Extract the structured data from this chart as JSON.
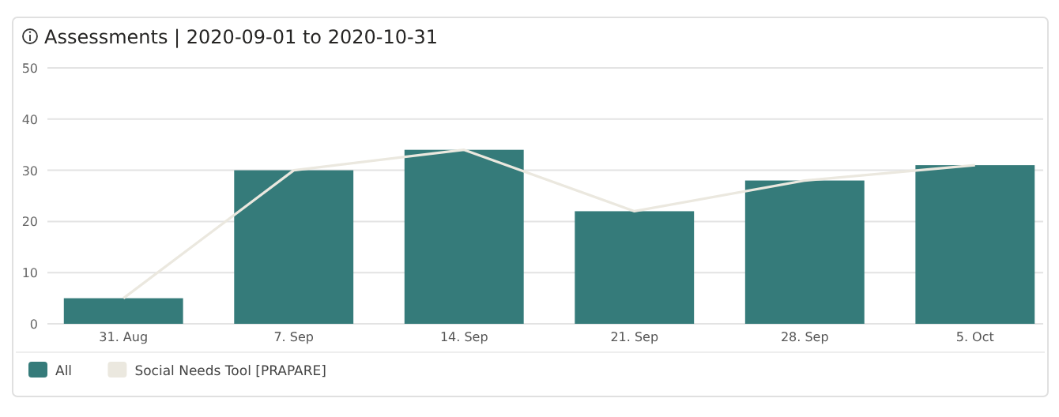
{
  "chart_data": {
    "type": "bar",
    "title": "Assessments | 2020-09-01 to 2020-10-31",
    "categories": [
      "31. Aug",
      "7. Sep",
      "14. Sep",
      "21. Sep",
      "28. Sep",
      "5. Oct"
    ],
    "series": [
      {
        "name": "All",
        "color": "#357b7a",
        "values": [
          5,
          30,
          34,
          22,
          28,
          31
        ]
      },
      {
        "name": "Social Needs Tool [PRAPARE]",
        "type": "line",
        "color": "#ebe8df",
        "values": [
          5,
          30,
          34,
          22,
          28,
          31
        ]
      }
    ],
    "ylim": [
      0,
      50
    ],
    "yticks": [
      0,
      10,
      20,
      30,
      40,
      50
    ],
    "grid": "y",
    "legend": "bottom",
    "marker": "none"
  }
}
